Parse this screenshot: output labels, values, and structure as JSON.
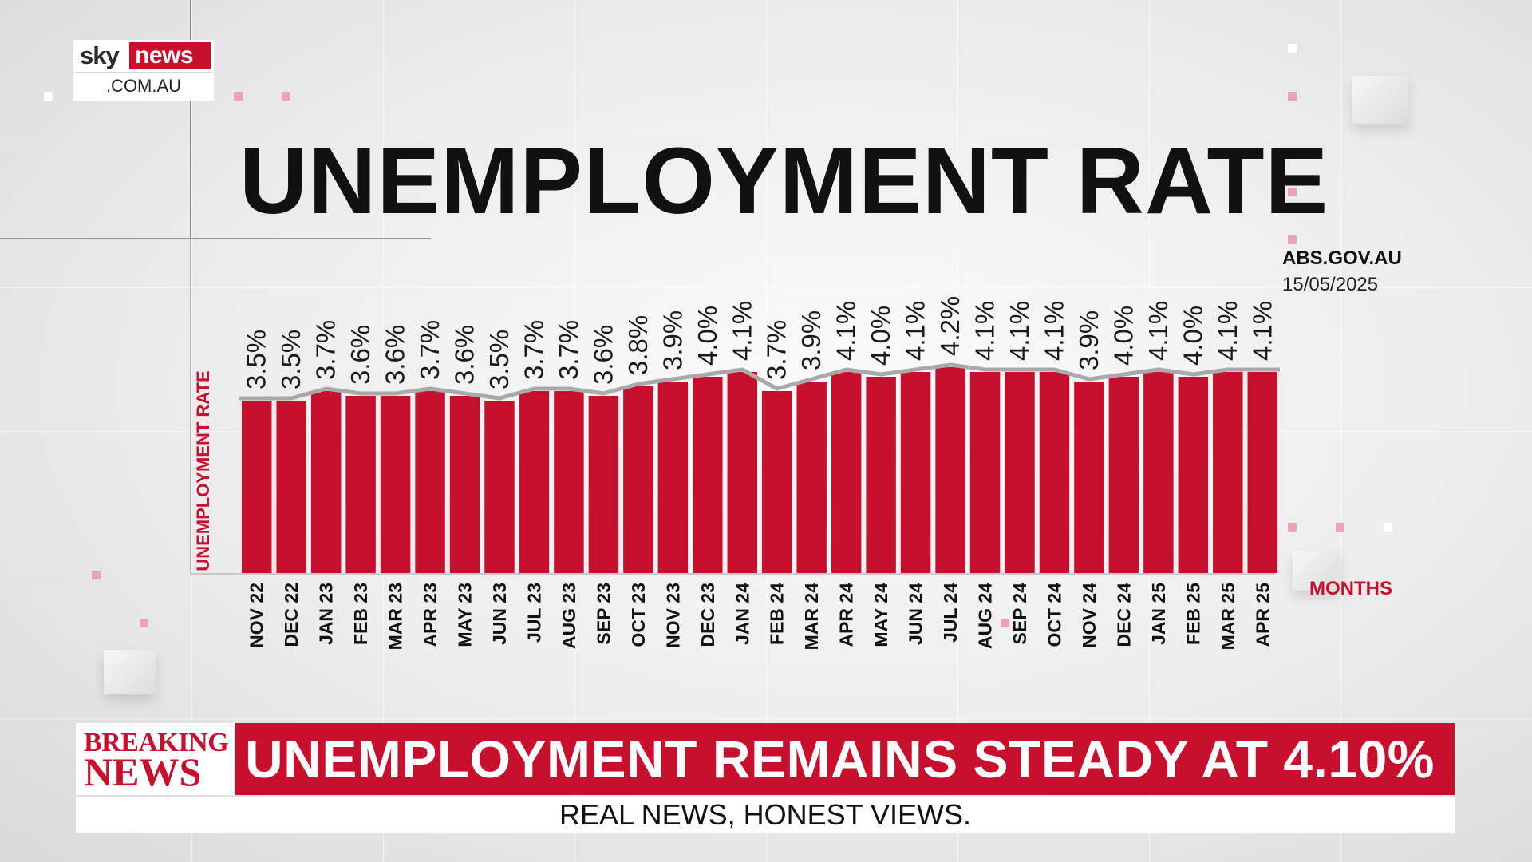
{
  "logo": {
    "brand_top": "sky",
    "brand_news": "news",
    "brand_domain": ".COM.AU"
  },
  "source": {
    "site": "ABS.GOV.AU",
    "date": "15/05/2025"
  },
  "chart_data": {
    "type": "bar",
    "title": "UNEMPLOYMENT RATE",
    "xlabel": "MONTHS",
    "ylabel": "UNEMPLOYMENT RATE",
    "categories": [
      "NOV 22",
      "DEC 22",
      "JAN 23",
      "FEB 23",
      "MAR 23",
      "APR 23",
      "MAY 23",
      "JUN 23",
      "JUL 23",
      "AUG 23",
      "SEP 23",
      "OCT 23",
      "NOV 23",
      "DEC 23",
      "JAN 24",
      "FEB 24",
      "MAR 24",
      "APR 24",
      "MAY 24",
      "JUN 24",
      "JUL 24",
      "AUG 24",
      "SEP 24",
      "OCT 24",
      "NOV 24",
      "DEC 24",
      "JAN 25",
      "FEB 25",
      "MAR 25",
      "APR 25"
    ],
    "values": [
      3.5,
      3.5,
      3.7,
      3.6,
      3.6,
      3.7,
      3.6,
      3.5,
      3.7,
      3.7,
      3.6,
      3.8,
      3.9,
      4.0,
      4.1,
      3.7,
      3.9,
      4.1,
      4.0,
      4.1,
      4.2,
      4.1,
      4.1,
      4.1,
      3.9,
      4.0,
      4.1,
      4.0,
      4.1,
      4.1
    ],
    "value_labels": [
      "3.5%",
      "3.5%",
      "3.7%",
      "3.6%",
      "3.6%",
      "3.7%",
      "3.6%",
      "3.5%",
      "3.7%",
      "3.7%",
      "3.6%",
      "3.8%",
      "3.9%",
      "4.0%",
      "4.1%",
      "3.7%",
      "3.9%",
      "4.1%",
      "4.0%",
      "4.1%",
      "4.2%",
      "4.1%",
      "4.1%",
      "4.1%",
      "3.9%",
      "4.0%",
      "4.1%",
      "4.0%",
      "4.1%",
      "4.1%"
    ],
    "bar_color": "#c8102e",
    "trend_line_color": "#a9a9a9",
    "grid": false
  },
  "breaking": {
    "label_line1": "BREAKING",
    "label_line2": "NEWS",
    "headline": "UNEMPLOYMENT REMAINS STEADY AT 4.10%"
  },
  "tagline": "REAL NEWS, HONEST VIEWS."
}
